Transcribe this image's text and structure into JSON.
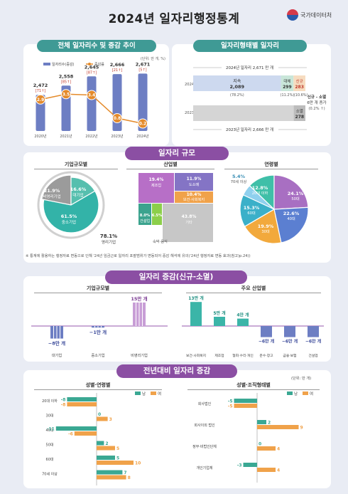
{
  "page": {
    "title": "2024년 일자리행정통계",
    "logo_text": "국가데이터처"
  },
  "sections": {
    "total_jobs": "전체 일자리수 및 증감 추이",
    "job_type": "일자리형태별 일자리",
    "job_scale": "일자리 규모",
    "job_change": "일자리 증감(신규-소멸)",
    "yoy": "전년대비 일자리 증감"
  },
  "chart_data": [
    {
      "type": "bar",
      "title": "전체 일자리수 및 증감 추이",
      "unit_note": "(단위: 만 개, %)",
      "legend": [
        "일자리수(증감)",
        "증감률"
      ],
      "categories": [
        "2020년",
        "2021년",
        "2022년",
        "2023년",
        "2024년"
      ],
      "series": [
        {
          "name": "일자리수(증감)",
          "values": [
            2472,
            2558,
            2645,
            2666,
            2671
          ],
          "labels": [
            "2,472",
            "2,558",
            "2,645",
            "2,666",
            "2,671"
          ],
          "changes": [
            "71",
            "85",
            "87",
            "21",
            "5"
          ]
        },
        {
          "name": "증감률",
          "values": [
            2.9,
            3.5,
            3.4,
            0.8,
            0.2
          ],
          "labels": [
            "2.9",
            "3.5",
            "3.4",
            "0.8",
            "0.2"
          ]
        }
      ],
      "colors": {
        "bar": "#6d7ec3",
        "line": "#e48a2a"
      }
    },
    {
      "type": "bar",
      "title": "일자리형태별 일자리",
      "year_2024": {
        "label": "2024년",
        "total_text": "2024년 일자리",
        "total": "2,671",
        "unit": "만 개",
        "stay_label": "지속",
        "stay": "2,089",
        "stay_pct": "(78.2%)",
        "replace_label": "대체",
        "replace": "299",
        "replace_pct": "(11.2%)",
        "new_label": "신규",
        "new": "283",
        "new_pct": "(10.6%)"
      },
      "year_2023": {
        "label": "2023년",
        "total_text": "2023년 일자리",
        "total": "2,666",
        "unit": "만 개",
        "vanish_label": "소멸",
        "vanish": "278"
      },
      "net_note": {
        "line1": "신규 - 소멸",
        "value": "6",
        "unit": "만 개 증가",
        "pct": "(0.2%"
      }
    },
    {
      "type": "pie",
      "title": "기업규모별",
      "slices": [
        {
          "name": "비영리기업",
          "value": 21.9,
          "label": "21.9%",
          "color": "#9b9b9b"
        },
        {
          "name": "대기업",
          "value": 16.6,
          "label": "16.6%",
          "color": "#56bfae"
        },
        {
          "name": "중소기업",
          "value": 61.5,
          "label": "61.5%",
          "color": "#33b3a8"
        }
      ],
      "profit_label": "78.1",
      "profit_text": "영리기업"
    },
    {
      "type": "heatmap",
      "title": "산업별",
      "cells": [
        {
          "name": "제조업",
          "label": "19.4%"
        },
        {
          "name": "도소매",
          "label": "11.9%"
        },
        {
          "name": "보건·사회복지",
          "label": "10.4%"
        },
        {
          "name": "건설업",
          "label": "8.0%"
        },
        {
          "name": "숙박·음식",
          "label": "6.5%"
        },
        {
          "name": "기타",
          "label": "43.8%"
        }
      ],
      "footnote": "숙박·음식"
    },
    {
      "type": "pie",
      "title": "연령별",
      "slices": [
        {
          "name": "70세 이상",
          "value": 5.4,
          "label": "5.4%",
          "color": "#8fd0ee"
        },
        {
          "name": "20대 이하",
          "value": 12.8,
          "label": "12.8%",
          "color": "#3fbfa8"
        },
        {
          "name": "50대",
          "value": 24.1,
          "label": "24.1%",
          "color": "#a86fc2"
        },
        {
          "name": "40대",
          "value": 22.6,
          "label": "22.6%",
          "color": "#5b7fd1"
        },
        {
          "name": "30대",
          "value": 19.9,
          "label": "19.9%",
          "color": "#f2a93c"
        },
        {
          "name": "60대",
          "value": 15.3,
          "label": "15.3%",
          "color": "#3bb0c9"
        }
      ]
    },
    {
      "type": "bar",
      "title": "기업규모별",
      "categories": [
        "대기업",
        "중소기업",
        "비영리기업"
      ],
      "values": [
        -8,
        -1,
        15
      ],
      "labels": [
        "−8만 개",
        "−1만 개",
        "15만 개"
      ]
    },
    {
      "type": "bar",
      "title": "주요 산업별",
      "categories": [
        "보건·사회복지",
        "제조업",
        "협회·수리·개인",
        "운수·창고",
        "금융·보험",
        "건설업"
      ],
      "values": [
        13,
        5,
        4,
        -6,
        -6,
        -6
      ],
      "labels": [
        "13만 개",
        "5만 개",
        "4만 개",
        "−6만 개",
        "−6만 개",
        "−6만 개"
      ]
    },
    {
      "type": "bar",
      "title": "성별·연령별",
      "legend": [
        "남",
        "여"
      ],
      "categories": [
        "20대 이하",
        "30대",
        "40대",
        "50대",
        "60대",
        "70세 이상"
      ],
      "series": [
        {
          "name": "남",
          "values": [
            -8,
            0,
            -11,
            2,
            5,
            7
          ],
          "color": "#3aa893"
        },
        {
          "name": "여",
          "values": [
            -8,
            3,
            -6,
            5,
            10,
            8
          ],
          "color": "#f0a24a"
        }
      ]
    },
    {
      "type": "bar",
      "title": "성별·조직형태별",
      "unit_note": "(단위: 만 개)",
      "legend": [
        "남",
        "여"
      ],
      "categories": [
        "회사법인",
        "회사이외 법인",
        "정부·비법인단체",
        "개인기업체"
      ],
      "series": [
        {
          "name": "남",
          "values": [
            -5,
            2,
            0,
            -3
          ],
          "color": "#3aa893"
        },
        {
          "name": "여",
          "values": [
            -5,
            9,
            4,
            4
          ],
          "color": "#f0a24a"
        }
      ]
    }
  ],
  "labels": {
    "scale_company": "기업규모별",
    "scale_industry": "산업별",
    "scale_age": "연령별",
    "change_company": "기업규모별",
    "change_industry": "주요 산업별",
    "yoy_age": "성별·연령별",
    "yoy_org": "성별·조직형태별",
    "pct": "%",
    "man": "만 개",
    "note": "※ 통계에 활용하는 행정자료 변동으로 인해 '24년 임금근로 일자리 포괄범위가 변동되어 증감 해석에 유의('24년 행정자료 변동 효과(참고)p.24))"
  }
}
